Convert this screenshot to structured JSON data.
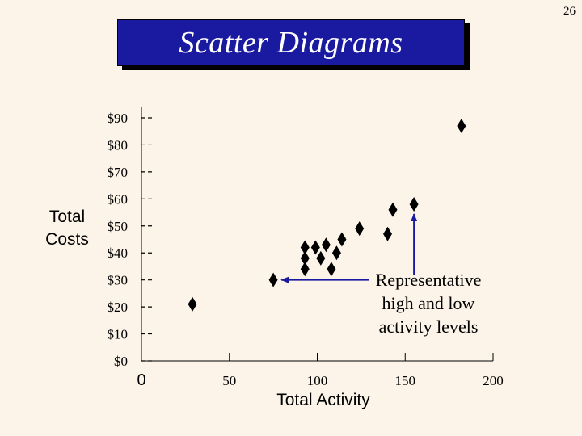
{
  "page_number": "26",
  "slide": {
    "title": "Scatter Diagrams"
  },
  "annotation": {
    "text": "Representative high and low activity levels",
    "line1": "Representative",
    "line2": "high and low",
    "line3": "activity levels"
  },
  "colors": {
    "background": "#fdf4e9",
    "title_box": "#1a1aa0",
    "arrow": "#1a1aa0",
    "marker": "#000000"
  },
  "chart_data": {
    "type": "scatter",
    "title": "Scatter Diagrams",
    "xlabel": "Total Activity",
    "ylabel": "Total Costs",
    "xlim": [
      0,
      200
    ],
    "ylim": [
      0,
      90
    ],
    "x_ticks": [
      0,
      50,
      100,
      150,
      200
    ],
    "x_tick_labels": [
      "0",
      "50",
      "100",
      "150",
      "200"
    ],
    "y_ticks": [
      0,
      10,
      20,
      30,
      40,
      50,
      60,
      70,
      80,
      90
    ],
    "y_tick_labels": [
      "$0",
      "$10",
      "$20",
      "$30",
      "$40",
      "$50",
      "$60",
      "$70",
      "$80",
      "$90"
    ],
    "marker": "diamond",
    "grid": false,
    "legend": "none",
    "points": [
      {
        "x": 29,
        "y": 21
      },
      {
        "x": 75,
        "y": 30
      },
      {
        "x": 93,
        "y": 34
      },
      {
        "x": 93,
        "y": 38
      },
      {
        "x": 93,
        "y": 42
      },
      {
        "x": 99,
        "y": 42
      },
      {
        "x": 102,
        "y": 38
      },
      {
        "x": 105,
        "y": 43
      },
      {
        "x": 108,
        "y": 34
      },
      {
        "x": 111,
        "y": 40
      },
      {
        "x": 114,
        "y": 45
      },
      {
        "x": 124,
        "y": 49
      },
      {
        "x": 140,
        "y": 47
      },
      {
        "x": 143,
        "y": 56
      },
      {
        "x": 155,
        "y": 58
      },
      {
        "x": 182,
        "y": 87
      }
    ],
    "highlighted_points": [
      {
        "x": 75,
        "y": 30,
        "label": "low"
      },
      {
        "x": 155,
        "y": 58,
        "label": "high"
      }
    ]
  }
}
